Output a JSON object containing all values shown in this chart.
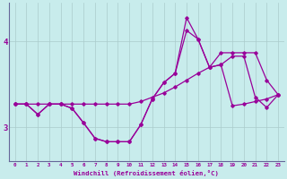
{
  "xlabel": "Windchill (Refroidissement éolien,°C)",
  "bg_color": "#c8ecec",
  "line_color": "#990099",
  "grid_color": "#aacccc",
  "spine_color": "#666699",
  "x_ticks": [
    0,
    1,
    2,
    3,
    4,
    5,
    6,
    7,
    8,
    9,
    10,
    11,
    12,
    13,
    14,
    15,
    16,
    17,
    18,
    19,
    20,
    21,
    22,
    23
  ],
  "y_ticks": [
    3,
    4
  ],
  "ylim": [
    2.6,
    4.45
  ],
  "xlim": [
    -0.5,
    23.5
  ],
  "series1_x": [
    0,
    1,
    2,
    3,
    4,
    5,
    6,
    7,
    8,
    9,
    10,
    11,
    12,
    13,
    14,
    15,
    16,
    17,
    18,
    19,
    20,
    21,
    22,
    23
  ],
  "series1_y": [
    3.27,
    3.27,
    3.15,
    3.27,
    3.27,
    3.22,
    3.05,
    2.87,
    2.83,
    2.83,
    2.83,
    3.03,
    3.33,
    3.52,
    3.63,
    4.28,
    4.03,
    3.7,
    3.73,
    3.83,
    3.83,
    3.35,
    3.23,
    3.38
  ],
  "series2_x": [
    0,
    1,
    2,
    3,
    4,
    5,
    6,
    7,
    8,
    9,
    10,
    11,
    12,
    13,
    14,
    15,
    16,
    17,
    18,
    19,
    20,
    21,
    22,
    23
  ],
  "series2_y": [
    3.27,
    3.27,
    3.15,
    3.27,
    3.27,
    3.22,
    3.05,
    2.87,
    2.83,
    2.83,
    2.83,
    3.03,
    3.33,
    3.52,
    3.63,
    4.13,
    4.03,
    3.7,
    3.87,
    3.87,
    3.87,
    3.87,
    3.55,
    3.38
  ],
  "series3_x": [
    0,
    1,
    2,
    3,
    4,
    5,
    6,
    7,
    8,
    9,
    10,
    11,
    12,
    13,
    14,
    15,
    16,
    17,
    18,
    19,
    20,
    21,
    22,
    23
  ],
  "series3_y": [
    3.27,
    3.27,
    3.27,
    3.27,
    3.27,
    3.27,
    3.27,
    3.27,
    3.27,
    3.27,
    3.27,
    3.3,
    3.35,
    3.4,
    3.47,
    3.55,
    3.63,
    3.7,
    3.73,
    3.25,
    3.27,
    3.3,
    3.33,
    3.38
  ]
}
